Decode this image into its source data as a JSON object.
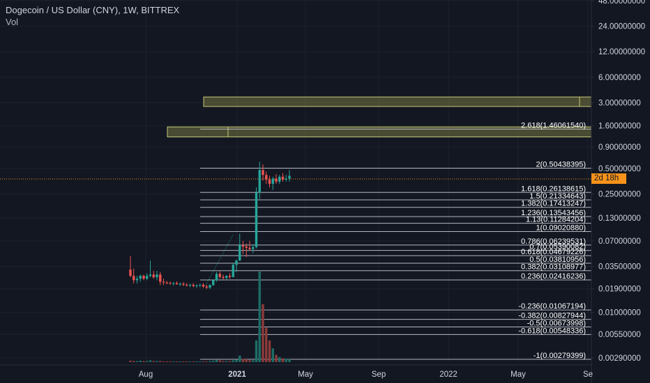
{
  "legend": {
    "title": "Dogecoin / US Dollar (CNY), 1W, BITTREX",
    "vol": "Vol"
  },
  "price_tag": "2d 18h",
  "colors": {
    "up": "#26a69a",
    "down": "#ef5350",
    "volUp": "#1d6d66",
    "volDown": "#8c3b3a",
    "box": "#c8c878",
    "grid": "#1e222d",
    "fib": "#d1d4dc",
    "priceLine": "#f7931a"
  },
  "chart_data": {
    "type": "candlestick",
    "y_scale": "log",
    "y_ticks": [
      "48.00000000",
      "24.00000000",
      "12.00000000",
      "6.00000000",
      "3.00000000",
      "1.60000000",
      "0.90000000",
      "0.50000000",
      "0.25000000",
      "0.13000000",
      "0.07000000",
      "0.03500000",
      "0.01900000",
      "0.01000000",
      "0.00550000",
      "0.00290000"
    ],
    "x_ticks": [
      "Aug",
      "2021",
      "May",
      "Sep",
      "2022",
      "May",
      "Se"
    ],
    "fib_levels": [
      {
        "label": "2.618(1.46061540)",
        "value": 1.4606154
      },
      {
        "label": "2(0.50438395)",
        "value": 0.50438395
      },
      {
        "label": "1.618(0.26138615)",
        "value": 0.26138615
      },
      {
        "label": "1.5(0.21334643)",
        "value": 0.21334643
      },
      {
        "label": "1.382(0.17413247)",
        "value": 0.17413247
      },
      {
        "label": "1.236(0.13543456)",
        "value": 0.13543456
      },
      {
        "label": "1.13(0.11284204)",
        "value": 0.11284204
      },
      {
        "label": "1(0.09020880)",
        "value": 0.0902088
      },
      {
        "label": "0.786(0.06239531)",
        "value": 0.06239531
      },
      {
        "label": "0.7(0.05390082)",
        "value": 0.05390082
      },
      {
        "label": "0.618(0.04679226)",
        "value": 0.04679226
      },
      {
        "label": "0.5(0.03810956)",
        "value": 0.03810956
      },
      {
        "label": "0.382(0.03108977)",
        "value": 0.03108977
      },
      {
        "label": "0.236(0.02416236)",
        "value": 0.02416236
      },
      {
        "label": "-0.236(0.01067194)",
        "value": 0.01067194
      },
      {
        "label": "-0.382(0.00827944)",
        "value": 0.00827944
      },
      {
        "label": "-0.5(0.00673998)",
        "value": 0.00673998
      },
      {
        "label": "-0.618(0.00548336)",
        "value": 0.00548336
      },
      {
        "label": "-1(0.00279399)",
        "value": 0.00279399
      }
    ],
    "zones": [
      {
        "top": 3.5,
        "bottom": 2.7
      },
      {
        "top": 1.55,
        "bottom": 1.18
      }
    ],
    "candles": [
      {
        "o": 0.032,
        "h": 0.046,
        "l": 0.026,
        "c": 0.027
      },
      {
        "o": 0.027,
        "h": 0.033,
        "l": 0.022,
        "c": 0.024
      },
      {
        "o": 0.024,
        "h": 0.027,
        "l": 0.022,
        "c": 0.025
      },
      {
        "o": 0.025,
        "h": 0.028,
        "l": 0.023,
        "c": 0.027
      },
      {
        "o": 0.027,
        "h": 0.028,
        "l": 0.024,
        "c": 0.025
      },
      {
        "o": 0.025,
        "h": 0.029,
        "l": 0.024,
        "c": 0.027
      },
      {
        "o": 0.027,
        "h": 0.041,
        "l": 0.026,
        "c": 0.028
      },
      {
        "o": 0.028,
        "h": 0.031,
        "l": 0.025,
        "c": 0.026
      },
      {
        "o": 0.026,
        "h": 0.031,
        "l": 0.024,
        "c": 0.028
      },
      {
        "o": 0.028,
        "h": 0.03,
        "l": 0.021,
        "c": 0.023
      },
      {
        "o": 0.023,
        "h": 0.025,
        "l": 0.021,
        "c": 0.0225
      },
      {
        "o": 0.0225,
        "h": 0.0235,
        "l": 0.0215,
        "c": 0.0222
      },
      {
        "o": 0.0222,
        "h": 0.0232,
        "l": 0.0212,
        "c": 0.0218
      },
      {
        "o": 0.0218,
        "h": 0.0228,
        "l": 0.0208,
        "c": 0.0222
      },
      {
        "o": 0.0222,
        "h": 0.0232,
        "l": 0.0212,
        "c": 0.0215
      },
      {
        "o": 0.0215,
        "h": 0.0225,
        "l": 0.0205,
        "c": 0.0218
      },
      {
        "o": 0.0218,
        "h": 0.0228,
        "l": 0.0205,
        "c": 0.0212
      },
      {
        "o": 0.0212,
        "h": 0.0222,
        "l": 0.0202,
        "c": 0.0208
      },
      {
        "o": 0.0208,
        "h": 0.0218,
        "l": 0.0198,
        "c": 0.0212
      },
      {
        "o": 0.0212,
        "h": 0.0222,
        "l": 0.0198,
        "c": 0.0205
      },
      {
        "o": 0.0205,
        "h": 0.0215,
        "l": 0.0195,
        "c": 0.0208
      },
      {
        "o": 0.0208,
        "h": 0.0218,
        "l": 0.0198,
        "c": 0.0212
      },
      {
        "o": 0.0212,
        "h": 0.0222,
        "l": 0.0195,
        "c": 0.0202
      },
      {
        "o": 0.0202,
        "h": 0.0212,
        "l": 0.0188,
        "c": 0.0196
      },
      {
        "o": 0.0196,
        "h": 0.0215,
        "l": 0.0188,
        "c": 0.021
      },
      {
        "o": 0.021,
        "h": 0.0245,
        "l": 0.0205,
        "c": 0.024
      },
      {
        "o": 0.024,
        "h": 0.03,
        "l": 0.023,
        "c": 0.0285
      },
      {
        "o": 0.0285,
        "h": 0.0305,
        "l": 0.025,
        "c": 0.0262
      },
      {
        "o": 0.0262,
        "h": 0.028,
        "l": 0.0245,
        "c": 0.0255
      },
      {
        "o": 0.0255,
        "h": 0.0275,
        "l": 0.0245,
        "c": 0.027
      },
      {
        "o": 0.027,
        "h": 0.029,
        "l": 0.025,
        "c": 0.0262
      },
      {
        "o": 0.0262,
        "h": 0.038,
        "l": 0.0258,
        "c": 0.0365
      },
      {
        "o": 0.0365,
        "h": 0.042,
        "l": 0.03,
        "c": 0.041
      },
      {
        "o": 0.041,
        "h": 0.085,
        "l": 0.0405,
        "c": 0.062
      },
      {
        "o": 0.062,
        "h": 0.07,
        "l": 0.049,
        "c": 0.06
      },
      {
        "o": 0.06,
        "h": 0.065,
        "l": 0.045,
        "c": 0.058
      },
      {
        "o": 0.058,
        "h": 0.07,
        "l": 0.054,
        "c": 0.056
      },
      {
        "o": 0.056,
        "h": 0.064,
        "l": 0.05,
        "c": 0.059
      },
      {
        "o": 0.059,
        "h": 0.3,
        "l": 0.057,
        "c": 0.26
      },
      {
        "o": 0.26,
        "h": 0.6,
        "l": 0.22,
        "c": 0.48
      },
      {
        "o": 0.48,
        "h": 0.56,
        "l": 0.36,
        "c": 0.42
      },
      {
        "o": 0.42,
        "h": 0.46,
        "l": 0.33,
        "c": 0.37
      },
      {
        "o": 0.37,
        "h": 0.41,
        "l": 0.3,
        "c": 0.33
      },
      {
        "o": 0.33,
        "h": 0.4,
        "l": 0.28,
        "c": 0.38
      },
      {
        "o": 0.38,
        "h": 0.43,
        "l": 0.33,
        "c": 0.35
      },
      {
        "o": 0.35,
        "h": 0.42,
        "l": 0.33,
        "c": 0.4
      },
      {
        "o": 0.4,
        "h": 0.44,
        "l": 0.35,
        "c": 0.37
      },
      {
        "o": 0.37,
        "h": 0.42,
        "l": 0.35,
        "c": 0.38
      },
      {
        "o": 0.38,
        "h": 0.48,
        "l": 0.35,
        "c": 0.41
      }
    ],
    "volumes": [
      4,
      3,
      3,
      4,
      3,
      3,
      5,
      3,
      3,
      3,
      2,
      2,
      2,
      2,
      2,
      2,
      2,
      2,
      2,
      2,
      2,
      2,
      2,
      2,
      3,
      4,
      6,
      5,
      3,
      3,
      3,
      5,
      7,
      18,
      9,
      8,
      5,
      5,
      60,
      250,
      160,
      95,
      60,
      38,
      20,
      14,
      10,
      9,
      8
    ],
    "current_price": 0.41
  }
}
